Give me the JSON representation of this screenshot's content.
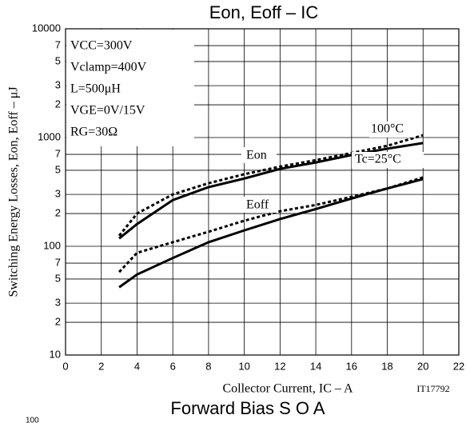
{
  "chart_data": {
    "type": "line",
    "title": "Eon, Eoff – IC",
    "x_label": "Collector Current, IC – A",
    "y_label": "Switching Energy Losses, Eon, Eoff – μJ",
    "conditions": [
      "VCC=300V",
      "Vclamp=400V",
      "L=500μH",
      "VGE=0V/15V",
      "RG=30Ω"
    ],
    "annotations": [
      "100°C",
      "Tc=25°C"
    ],
    "code": "IT17792",
    "next_title": "Forward Bias S O A",
    "next_tick": "100",
    "log_y": true,
    "grid": true,
    "x": [
      3,
      4,
      6,
      8,
      10,
      12,
      14,
      16,
      18,
      20
    ],
    "series": [
      {
        "name": "Eon",
        "color": "#000000",
        "dash": false,
        "values": [
          118,
          160,
          266,
          350,
          420,
          515,
          590,
          690,
          790,
          890
        ]
      },
      {
        "name": "Eon",
        "color": "#000000",
        "dash": true,
        "values": [
          125,
          200,
          300,
          380,
          460,
          540,
          620,
          720,
          840,
          1050
        ]
      },
      {
        "name": "Eoff",
        "color": "#000000",
        "dash": false,
        "values": [
          42,
          55,
          78,
          109,
          140,
          178,
          220,
          275,
          340,
          415
        ]
      },
      {
        "name": "Eoff",
        "color": "#000000",
        "dash": true,
        "values": [
          58,
          87,
          109,
          136,
          172,
          210,
          240,
          285,
          340,
          430
        ]
      }
    ],
    "xlim": [
      0,
      22
    ],
    "xticks": [
      0,
      2,
      4,
      6,
      8,
      10,
      12,
      14,
      16,
      18,
      20,
      22
    ],
    "ylim": [
      10,
      10000
    ],
    "yticks": [
      10,
      {
        "value": 20,
        "label": "2"
      },
      {
        "value": 30,
        "label": "3"
      },
      {
        "value": 50,
        "label": "5"
      },
      {
        "value": 70,
        "label": "7"
      },
      100,
      {
        "value": 200,
        "label": "2"
      },
      {
        "value": 300,
        "label": "3"
      },
      {
        "value": 500,
        "label": "5"
      },
      {
        "value": 700,
        "label": "7"
      },
      1000,
      {
        "value": 2000,
        "label": "2"
      },
      {
        "value": 3000,
        "label": "3"
      },
      {
        "value": 5000,
        "label": "5"
      },
      {
        "value": 7000,
        "label": "7"
      },
      10000
    ]
  }
}
